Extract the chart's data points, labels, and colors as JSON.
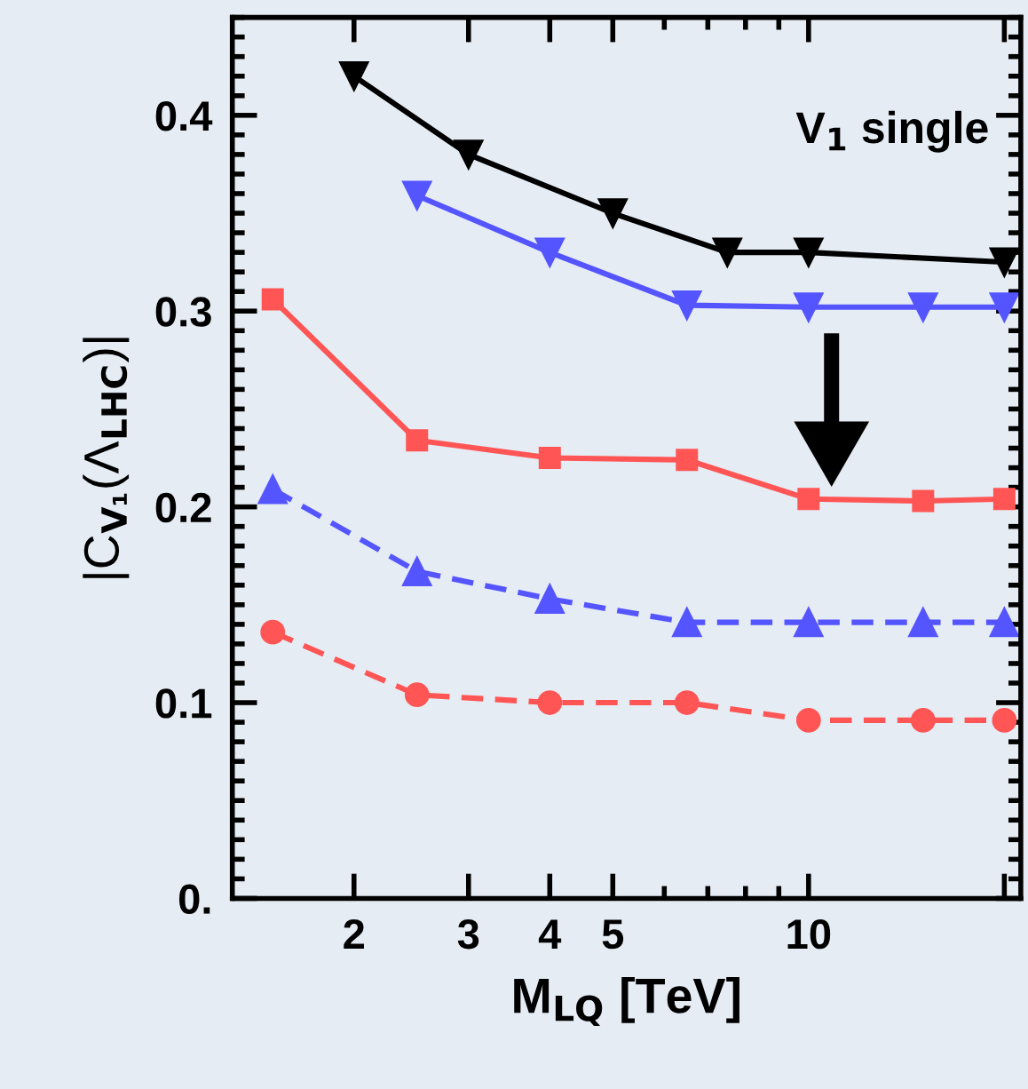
{
  "chart_data": {
    "type": "line",
    "xlabel": "M$_{LQ}$ [TeV]",
    "ylabel": "|C$_{V₁}$(Λ$_{LHC}$)|",
    "log": "x",
    "xlim": [
      1.3,
      21.2
    ],
    "xticks": [
      2,
      3,
      4,
      5,
      10,
      {
        "value": 20,
        "label": null
      }
    ],
    "ylim": [
      0,
      0.45
    ],
    "yticks": [
      {
        "value": 0,
        "label": "0."
      },
      0.1,
      0.2,
      0.3,
      0.4
    ],
    "annotations": [
      "V$_{1}$ single"
    ],
    "grid": false,
    "legend": false,
    "series": [
      {
        "color": "#000000",
        "marker": "triangle_down",
        "line_style": "solid",
        "x": [
          2,
          3,
          5,
          7.5,
          10,
          20
        ],
        "values": [
          0.42,
          0.38,
          0.35,
          0.33,
          0.33,
          0.325
        ]
      },
      {
        "color": "#5555ff",
        "marker": "triangle_down",
        "line_style": "solid",
        "x": [
          2.5,
          4,
          6.5,
          10,
          15,
          20
        ],
        "values": [
          0.359,
          0.33,
          0.303,
          0.302,
          0.302,
          0.302
        ]
      },
      {
        "color": "#ff5555",
        "marker": "square",
        "line_style": "solid",
        "x": [
          1.5,
          2.5,
          4,
          6.5,
          10,
          15,
          20
        ],
        "values": [
          0.306,
          0.234,
          0.225,
          0.224,
          0.204,
          0.203,
          0.204
        ]
      },
      {
        "color": "#5555ff",
        "marker": "triangle",
        "line_style": "dashed",
        "x": [
          1.5,
          2.5,
          4,
          6.5,
          10,
          15,
          20
        ],
        "values": [
          0.209,
          0.167,
          0.153,
          0.141,
          0.141,
          0.141,
          0.141
        ]
      },
      {
        "color": "#ff5555",
        "marker": "circle",
        "line_style": "dashed",
        "x": [
          1.5,
          2.5,
          4,
          6.5,
          10,
          15,
          20
        ],
        "values": [
          0.136,
          0.104,
          0.1,
          0.1,
          0.091,
          0.091,
          0.091
        ]
      }
    ]
  }
}
